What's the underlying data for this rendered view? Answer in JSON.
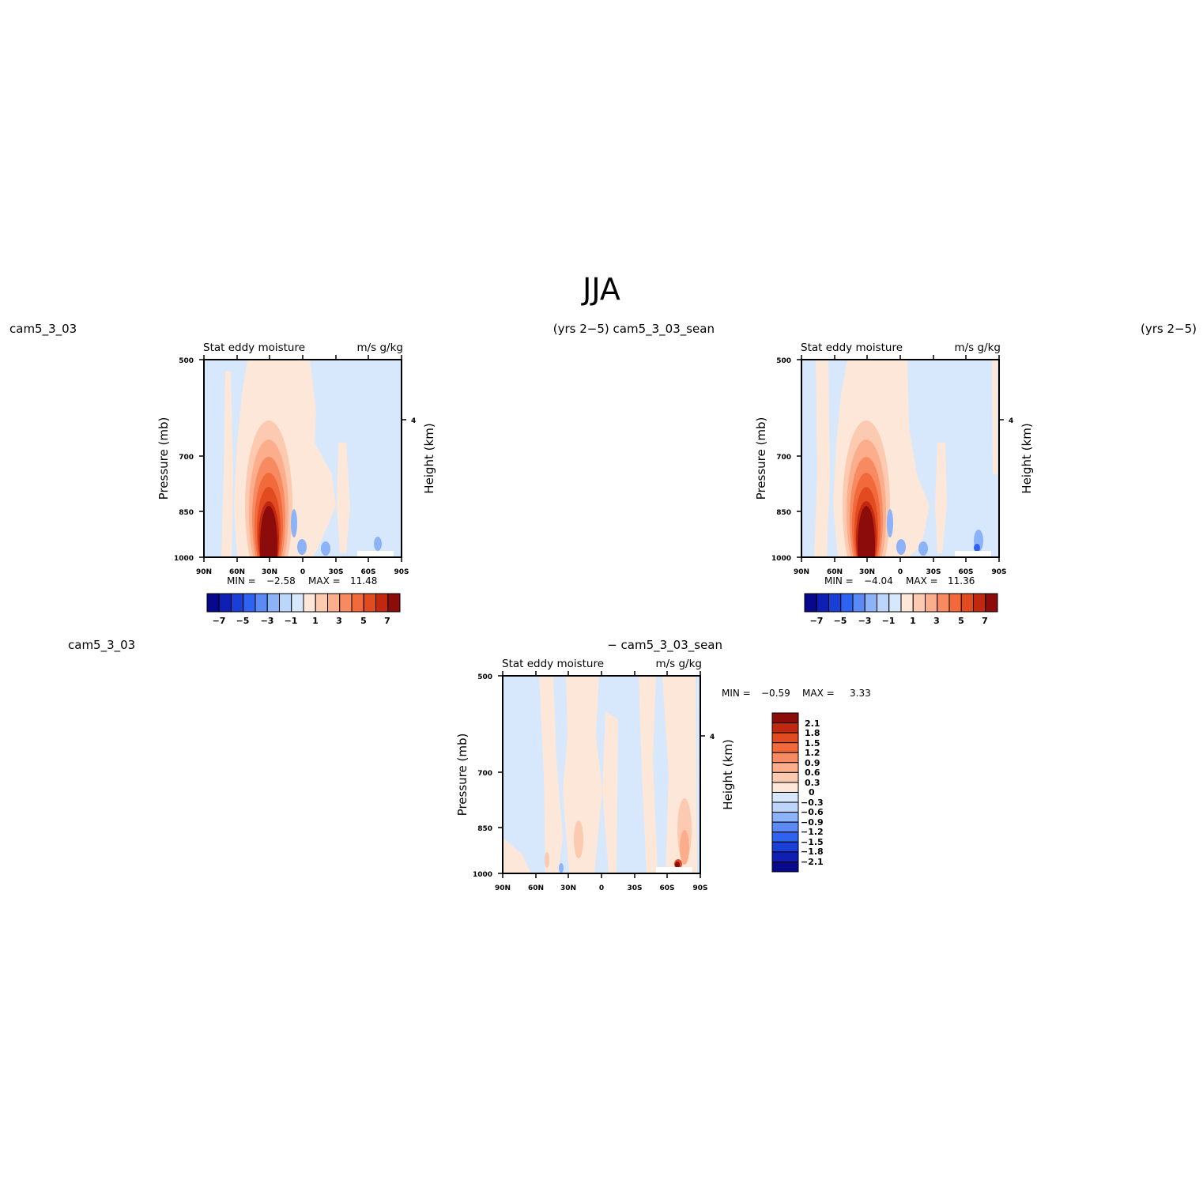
{
  "page": {
    "title": "JJA"
  },
  "panels": [
    {
      "left_label": "cam5_3_03",
      "right_label": "(yrs 2−5) cam5_3_03_sean",
      "subtitle_left": "Stat eddy moisture",
      "subtitle_right": "m/s g/kg",
      "stats": {
        "min_label": "MIN =",
        "min": "−2.58",
        "max_label": "MAX =",
        "max": "11.48"
      },
      "colorbar_tick_labels": [
        "−7",
        "−5",
        "−3",
        "−1",
        "1",
        "3",
        "5",
        "7"
      ]
    },
    {
      "left_label": "",
      "right_label": "(yrs 2−5)",
      "subtitle_left": "Stat eddy moisture",
      "subtitle_right": "m/s g/kg",
      "stats": {
        "min_label": "MIN =",
        "min": "−4.04",
        "max_label": "MAX =",
        "max": "11.36"
      },
      "colorbar_tick_labels": [
        "−7",
        "−5",
        "−3",
        "−1",
        "1",
        "3",
        "5",
        "7"
      ]
    },
    {
      "left_label": "cam5_3_03",
      "right_label": "− cam5_3_03_sean",
      "subtitle_left": "Stat eddy moisture",
      "subtitle_right": "m/s g/kg",
      "stats": {
        "min_label": "MIN =",
        "min": "−0.59",
        "max_label": "MAX =",
        "max": "3.33"
      },
      "colorbar_tick_labels": [
        "2.1",
        "1.8",
        "1.5",
        "1.2",
        "0.9",
        "0.6",
        "0.3",
        "0",
        "−0.3",
        "−0.6",
        "−0.9",
        "−1.2",
        "−1.5",
        "−1.8",
        "−2.1"
      ]
    }
  ],
  "chart_data": [
    {
      "type": "heatmap",
      "title": "Stat eddy moisture",
      "units": "m/s g/kg",
      "x": [
        "90N",
        "60N",
        "30N",
        "0",
        "30S",
        "60S",
        "90S"
      ],
      "y_pressure_mb": [
        500,
        700,
        850,
        1000
      ],
      "y_height_km": [
        4
      ],
      "xlabel": "",
      "ylabel": "Pressure (mb)",
      "ylabel_right": "Height (km)",
      "min": -2.58,
      "max": 11.48,
      "contour_levels": [
        -7,
        -6,
        -5,
        -4,
        -3,
        -2,
        -1,
        0,
        1,
        2,
        3,
        4,
        5,
        6,
        7
      ],
      "features": [
        {
          "lat": 30,
          "p_top": 560,
          "p_bottom": 1000,
          "peak": 11.48
        },
        {
          "lat": -60,
          "p_top": 950,
          "p_bottom": 1000,
          "peak": -1.5
        }
      ]
    },
    {
      "type": "heatmap",
      "title": "Stat eddy moisture",
      "units": "m/s g/kg",
      "x": [
        "90N",
        "60N",
        "30N",
        "0",
        "30S",
        "60S",
        "90S"
      ],
      "y_pressure_mb": [
        500,
        700,
        850,
        1000
      ],
      "y_height_km": [
        4
      ],
      "xlabel": "",
      "ylabel": "Pressure (mb)",
      "ylabel_right": "Height (km)",
      "min": -4.04,
      "max": 11.36,
      "contour_levels": [
        -7,
        -6,
        -5,
        -4,
        -3,
        -2,
        -1,
        0,
        1,
        2,
        3,
        4,
        5,
        6,
        7
      ],
      "features": [
        {
          "lat": 30,
          "p_top": 560,
          "p_bottom": 1000,
          "peak": 11.36
        },
        {
          "lat": -65,
          "p_top": 960,
          "p_bottom": 1000,
          "peak": -4.04
        }
      ]
    },
    {
      "type": "heatmap",
      "title": "Stat eddy moisture",
      "units": "m/s g/kg",
      "x": [
        "90N",
        "60N",
        "30N",
        "0",
        "30S",
        "60S",
        "90S"
      ],
      "y_pressure_mb": [
        500,
        700,
        850,
        1000
      ],
      "y_height_km": [
        4
      ],
      "xlabel": "",
      "ylabel": "Pressure (mb)",
      "ylabel_right": "Height (km)",
      "min": -0.59,
      "max": 3.33,
      "contour_levels": [
        -2.1,
        -1.8,
        -1.5,
        -1.2,
        -0.9,
        -0.6,
        -0.3,
        0,
        0.3,
        0.6,
        0.9,
        1.2,
        1.5,
        1.8,
        2.1
      ],
      "features": [
        {
          "lat": -72,
          "p_top": 980,
          "p_bottom": 1000,
          "peak": 3.33
        },
        {
          "lat": 28,
          "p_top": 880,
          "p_bottom": 1000,
          "peak": 0.6
        }
      ]
    }
  ],
  "colors": {
    "neg": [
      "#08088c",
      "#0f1fb3",
      "#1a3fd6",
      "#2f62f0",
      "#5b8af5",
      "#8cb2f8",
      "#bcd6fb",
      "#d7e8fd"
    ],
    "pos": [
      "#fde7d8",
      "#fccab0",
      "#fbad8c",
      "#f88a62",
      "#f26a3b",
      "#e24a20",
      "#c2280f",
      "#8c0b0b"
    ],
    "axis": "#000000"
  }
}
